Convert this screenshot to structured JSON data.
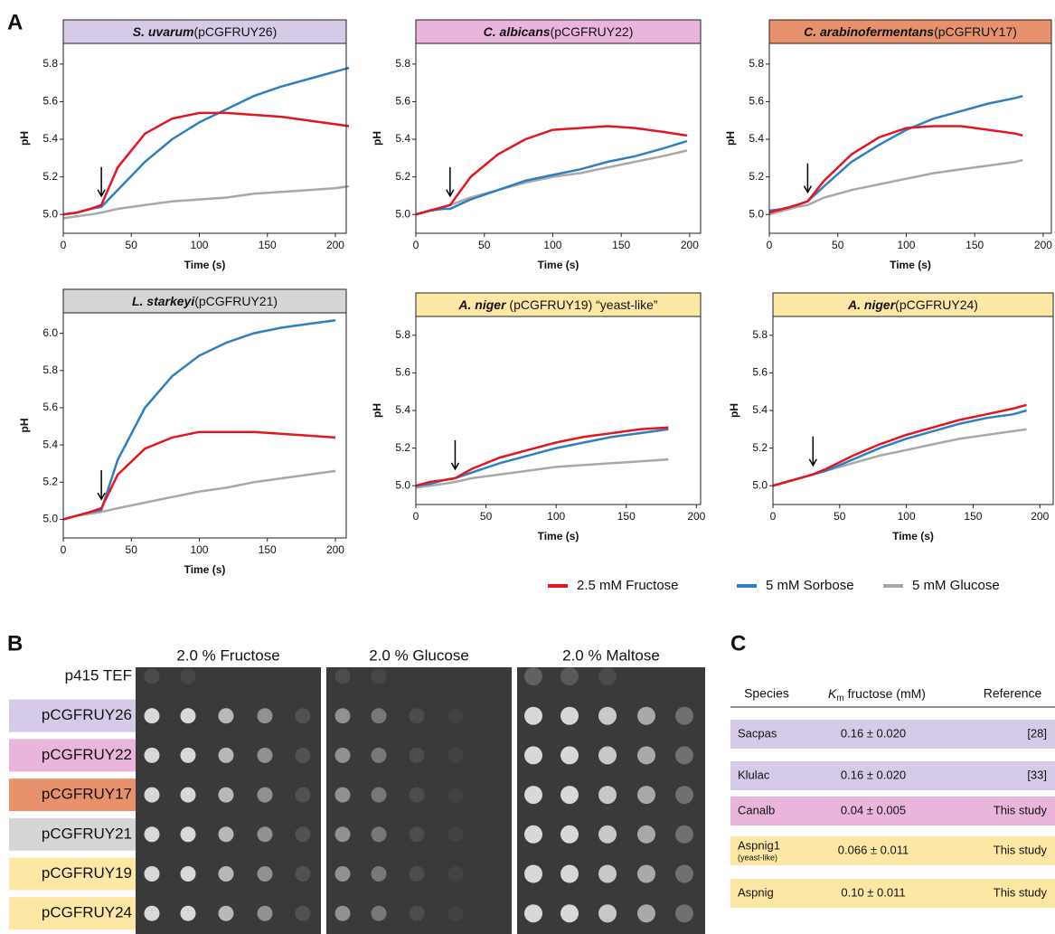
{
  "panels": [
    "A",
    "B",
    "C"
  ],
  "legend_note": null,
  "chart_data": [
    {
      "type": "line",
      "title": "S. uvarum",
      "subtitle": "(pCGFRUY26)",
      "title_color": "#d5cbe8",
      "xlabel": "Time (s)",
      "ylabel": "pH",
      "x": [
        0,
        10,
        20,
        28,
        40,
        60,
        80,
        100,
        120,
        140,
        160,
        180,
        200,
        210
      ],
      "xlim": [
        0,
        208
      ],
      "ylim": [
        4.9,
        5.91
      ],
      "xticks": [
        0,
        50,
        100,
        150,
        200
      ],
      "yticks": [
        {
          "value": 5,
          "label": "5.0"
        },
        5.2,
        5.4,
        5.6,
        5.8
      ],
      "series": [
        {
          "name": "2.5 mM Fructose",
          "color": "#e3161f",
          "values": [
            5.0,
            5.01,
            5.03,
            5.05,
            5.25,
            5.43,
            5.51,
            5.54,
            5.54,
            5.53,
            5.52,
            5.5,
            5.48,
            5.47
          ]
        },
        {
          "name": "5 mM Sorbose",
          "color": "#2d7fc4",
          "values": [
            5.0,
            5.01,
            5.03,
            5.04,
            5.13,
            5.28,
            5.4,
            5.49,
            5.56,
            5.63,
            5.68,
            5.72,
            5.76,
            5.78
          ]
        },
        {
          "name": "5 mM Glucose",
          "color": "#a8a8a8",
          "values": [
            4.98,
            4.99,
            5.0,
            5.01,
            5.03,
            5.05,
            5.07,
            5.08,
            5.09,
            5.11,
            5.12,
            5.13,
            5.14,
            5.15
          ]
        }
      ]
    },
    {
      "type": "line",
      "title": "C. albicans",
      "subtitle": "(pCGFRUY22)",
      "title_color": "#e9b5dc",
      "xlabel": "Time (s)",
      "ylabel": "pH",
      "x": [
        0,
        10,
        20,
        25,
        40,
        60,
        80,
        100,
        120,
        140,
        160,
        180,
        198
      ],
      "xlim": [
        0,
        208
      ],
      "ylim": [
        4.9,
        5.91
      ],
      "xticks": [
        0,
        50,
        100,
        150,
        200
      ],
      "yticks": [
        {
          "value": 5,
          "label": "5.0"
        },
        5.2,
        5.4,
        5.6,
        5.8
      ],
      "series": [
        {
          "color": "#e3161f",
          "values": [
            5.0,
            5.02,
            5.04,
            5.05,
            5.2,
            5.32,
            5.4,
            5.45,
            5.46,
            5.47,
            5.46,
            5.44,
            5.42
          ]
        },
        {
          "color": "#2d7fc4",
          "values": [
            5.0,
            5.02,
            5.03,
            5.03,
            5.08,
            5.13,
            5.18,
            5.21,
            5.24,
            5.28,
            5.31,
            5.35,
            5.39
          ]
        },
        {
          "color": "#a8a8a8",
          "values": [
            5.0,
            5.02,
            5.04,
            5.05,
            5.09,
            5.13,
            5.17,
            5.2,
            5.22,
            5.25,
            5.28,
            5.31,
            5.34
          ]
        }
      ]
    },
    {
      "type": "line",
      "title": "C. arabinofermentans",
      "subtitle": "(pCGFRUY17)",
      "title_color": "#e8916d",
      "xlabel": "Time (s)",
      "ylabel": "pH",
      "x": [
        0,
        10,
        20,
        28,
        40,
        60,
        80,
        100,
        120,
        140,
        160,
        180,
        185
      ],
      "xlim": [
        0,
        206
      ],
      "ylim": [
        4.9,
        5.91
      ],
      "xticks": [
        0,
        50,
        100,
        150,
        200
      ],
      "yticks": [
        {
          "value": 5,
          "label": "5.0"
        },
        5.2,
        5.4,
        5.6,
        5.8
      ],
      "series": [
        {
          "color": "#e3161f",
          "values": [
            5.01,
            5.03,
            5.05,
            5.07,
            5.18,
            5.32,
            5.41,
            5.46,
            5.47,
            5.47,
            5.45,
            5.43,
            5.42
          ]
        },
        {
          "color": "#2d7fc4",
          "values": [
            5.02,
            5.03,
            5.05,
            5.07,
            5.15,
            5.28,
            5.37,
            5.45,
            5.51,
            5.55,
            5.59,
            5.62,
            5.63
          ]
        },
        {
          "color": "#a8a8a8",
          "values": [
            5.0,
            5.02,
            5.04,
            5.05,
            5.09,
            5.13,
            5.16,
            5.19,
            5.22,
            5.24,
            5.26,
            5.28,
            5.29
          ]
        }
      ]
    },
    {
      "type": "line",
      "title": "L. starkeyi",
      "subtitle": "(pCGFRUY21)",
      "title_color": "#d6d6d6",
      "xlabel": "Time (s)",
      "ylabel": "pH",
      "x": [
        0,
        10,
        20,
        28,
        40,
        60,
        80,
        100,
        120,
        140,
        160,
        180,
        200
      ],
      "xlim": [
        0,
        208
      ],
      "ylim": [
        4.9,
        6.11
      ],
      "xticks": [
        0,
        50,
        100,
        150,
        200
      ],
      "yticks": [
        {
          "value": 5,
          "label": "5.0"
        },
        5.2,
        5.4,
        5.6,
        5.8,
        {
          "value": 6,
          "label": "6.0"
        }
      ],
      "series": [
        {
          "color": "#e3161f",
          "values": [
            5.0,
            5.02,
            5.04,
            5.06,
            5.24,
            5.38,
            5.44,
            5.47,
            5.47,
            5.47,
            5.46,
            5.45,
            5.44
          ]
        },
        {
          "color": "#2d7fc4",
          "values": [
            5.0,
            5.02,
            5.04,
            5.05,
            5.32,
            5.6,
            5.77,
            5.88,
            5.95,
            6.0,
            6.03,
            6.05,
            6.07
          ]
        },
        {
          "color": "#a8a8a8",
          "values": [
            5.0,
            5.02,
            5.03,
            5.04,
            5.06,
            5.09,
            5.12,
            5.15,
            5.17,
            5.2,
            5.22,
            5.24,
            5.26
          ]
        }
      ]
    },
    {
      "type": "line",
      "title": "A. niger",
      "subtitle": " (pCGFRUY19) “yeast-like”",
      "title_color": "#fde7a4",
      "xlabel": "Time (s)",
      "ylabel": "pH",
      "x": [
        0,
        10,
        20,
        28,
        40,
        60,
        80,
        100,
        120,
        140,
        160,
        180
      ],
      "xlim": [
        0,
        203
      ],
      "ylim": [
        4.9,
        5.9
      ],
      "xticks": [
        0,
        50,
        100,
        150,
        200
      ],
      "yticks": [
        {
          "value": 5,
          "label": "5.0"
        },
        5.2,
        5.4,
        5.6,
        5.8
      ],
      "series": [
        {
          "color": "#e3161f",
          "values": [
            5.0,
            5.02,
            5.03,
            5.04,
            5.09,
            5.15,
            5.19,
            5.23,
            5.26,
            5.28,
            5.3,
            5.31
          ]
        },
        {
          "color": "#2d7fc4",
          "values": [
            5.0,
            5.01,
            5.03,
            5.04,
            5.07,
            5.12,
            5.16,
            5.2,
            5.23,
            5.26,
            5.28,
            5.3
          ]
        },
        {
          "color": "#a8a8a8",
          "values": [
            4.99,
            5.0,
            5.01,
            5.02,
            5.04,
            5.06,
            5.08,
            5.1,
            5.11,
            5.12,
            5.13,
            5.14
          ]
        }
      ]
    },
    {
      "type": "line",
      "title": "A. niger",
      "subtitle": "(pCGFRUY24)",
      "title_color": "#fde7a4",
      "xlabel": "Time (s)",
      "ylabel": "pH",
      "x": [
        0,
        10,
        20,
        30,
        40,
        60,
        80,
        100,
        120,
        140,
        160,
        180,
        190
      ],
      "xlim": [
        0,
        210
      ],
      "ylim": [
        4.9,
        5.9
      ],
      "xticks": [
        0,
        50,
        100,
        150,
        200
      ],
      "yticks": [
        {
          "value": 5,
          "label": "5.0"
        },
        5.2,
        5.4,
        5.6,
        5.8
      ],
      "series": [
        {
          "color": "#e3161f",
          "values": [
            5.0,
            5.02,
            5.04,
            5.06,
            5.09,
            5.16,
            5.22,
            5.27,
            5.31,
            5.35,
            5.38,
            5.41,
            5.43
          ]
        },
        {
          "color": "#2d7fc4",
          "values": [
            5.0,
            5.02,
            5.04,
            5.06,
            5.08,
            5.14,
            5.2,
            5.25,
            5.29,
            5.33,
            5.36,
            5.38,
            5.4
          ]
        },
        {
          "color": "#a8a8a8",
          "values": [
            5.0,
            5.02,
            5.04,
            5.06,
            5.08,
            5.12,
            5.16,
            5.19,
            5.22,
            5.25,
            5.27,
            5.29,
            5.3
          ]
        }
      ]
    }
  ],
  "spot_assay": {
    "columns": [
      "2.0 % Fructose",
      "2.0 % Glucose",
      "2.0 % Maltose"
    ],
    "rows": [
      "p415 TEF",
      "pCGFRUY26",
      "pCGFRUY22",
      "pCGFRUY17",
      "pCGFRUY21",
      "pCGFRUY19",
      "pCGFRUY24"
    ],
    "row_colors": [
      "#ffffff",
      "#d5cbe8",
      "#e9b5dc",
      "#e8916d",
      "#d6d6d6",
      "#fde7a4",
      "#fde7a4"
    ]
  },
  "table": {
    "header": [
      "Species",
      {
        "k": "K",
        "sub": "m",
        "rest": " fructose (mM)"
      },
      "Reference"
    ],
    "rows": [
      [
        "Sacpas",
        "0.16 ± 0.020",
        "[28]"
      ],
      [
        "Klulac",
        "0.16 ± 0.020",
        "[33]"
      ],
      [
        "Canalb",
        "0.04 ± 0.005",
        "This study"
      ],
      [
        {
          "name": "Aspnig1",
          "note": "(yeast-like)"
        },
        "0.066 ± 0.011",
        "This study"
      ],
      [
        "Aspnig",
        "0.10 ± 0.011",
        "This study"
      ]
    ],
    "row_colors": [
      "#d5cbe8",
      "#d5cbe8",
      "#e9b5dc",
      "#fde7a4",
      "#fde7a4"
    ]
  }
}
